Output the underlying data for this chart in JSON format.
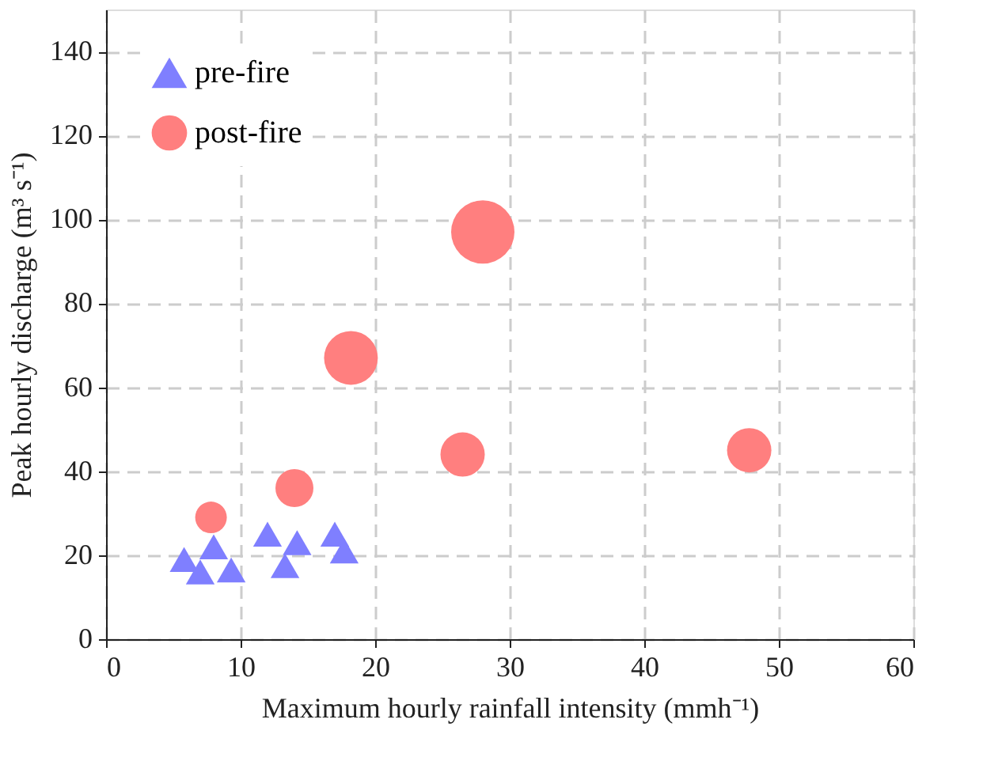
{
  "chart_data": {
    "type": "bubble",
    "xlabel": "Maximum hourly rainfall intensity (mmh⁻¹)",
    "ylabel": "Peak hourly discharge (m³ s⁻¹)",
    "xlim": [
      0,
      60
    ],
    "xticks": [
      0,
      10,
      20,
      30,
      40,
      50,
      60
    ],
    "ylim": [
      0,
      150
    ],
    "yticks": [
      0,
      20,
      40,
      60,
      80,
      100,
      120,
      140
    ],
    "grid": true,
    "legend": "top left",
    "series": [
      {
        "name": "pre-fire",
        "type": "scatter",
        "marker": "triangle",
        "color": "#7f7fff",
        "x": [
          5.8,
          7.0,
          8.0,
          9.3,
          12.0,
          13.3,
          14.2,
          17.0,
          17.7
        ],
        "values": [
          19,
          16,
          22,
          16.5,
          25,
          17.5,
          23,
          25,
          21
        ]
      },
      {
        "name": "post-fire",
        "type": "bubble",
        "marker": "circle",
        "color": "#ff7f7f",
        "x": [
          7.8,
          14.0,
          18.2,
          28.0,
          26.5,
          47.8
        ],
        "values": [
          29,
          36,
          67,
          97,
          44,
          45
        ],
        "sizes": [
          0.25,
          0.36,
          0.72,
          1,
          0.49,
          0.49
        ]
      }
    ]
  }
}
